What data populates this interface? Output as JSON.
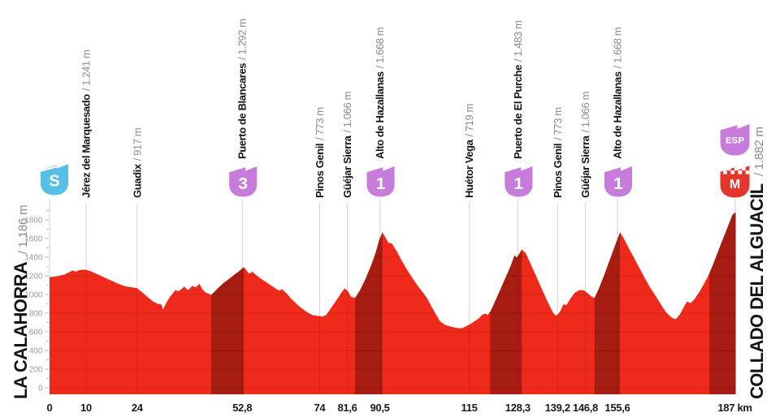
{
  "chart_data": {
    "type": "area",
    "title": "",
    "x_unit": "km",
    "xlim_km": [
      0,
      188
    ],
    "ylim_m": [
      0,
      1900
    ],
    "grid": "vertical-at-waypoints, horizontal-200m-inside-fill",
    "y_ticks_m": [
      0,
      200,
      400,
      600,
      800,
      1000,
      1200,
      1400,
      1600,
      1800
    ],
    "x_ticks": [
      {
        "km": 0,
        "label": "0"
      },
      {
        "km": 10,
        "label": "10"
      },
      {
        "km": 24,
        "label": "24"
      },
      {
        "km": 52.8,
        "label": "52,8"
      },
      {
        "km": 74,
        "label": "74"
      },
      {
        "km": 81.6,
        "label": "81,6"
      },
      {
        "km": 90.5,
        "label": "90,5"
      },
      {
        "km": 115,
        "label": "115"
      },
      {
        "km": 128.3,
        "label": "128,3"
      },
      {
        "km": 139.2,
        "label": "139,2"
      },
      {
        "km": 146.8,
        "label": "146,8"
      },
      {
        "km": 155.6,
        "label": "155,6"
      },
      {
        "km": 187,
        "label": "187 km"
      }
    ],
    "start_label": {
      "name": "LA CALAHORRA",
      "elevation": "/ 1.186 m"
    },
    "finish_label": {
      "name": "COLLADO DEL ALGUACIL",
      "elevation": "/ 1.882 m"
    },
    "waypoints": [
      {
        "km": 0,
        "icon": "start",
        "icon_label": "S"
      },
      {
        "km": 10,
        "name": "Jérez del Marquesado",
        "elevation": "/ 1.241 m"
      },
      {
        "km": 24,
        "name": "Guadix",
        "elevation": "/ 917 m"
      },
      {
        "km": 52.8,
        "name": "Puerto de Blancares",
        "elevation": "/ 1.292 m",
        "icon": "category",
        "icon_label": "3"
      },
      {
        "km": 74,
        "name": "Pinos Genil",
        "elevation": "/ 773 m"
      },
      {
        "km": 81.6,
        "name": "Güéjar Sierra",
        "elevation": "/ 1.066 m"
      },
      {
        "km": 90.5,
        "name": "Alto de Hazallanas",
        "elevation": "/ 1.668 m",
        "icon": "category",
        "icon_label": "1"
      },
      {
        "km": 115,
        "name": "Huétor Vega",
        "elevation": "/ 719 m"
      },
      {
        "km": 128.3,
        "name": "Puerto de El Purche",
        "elevation": "/ 1.483 m",
        "icon": "category",
        "icon_label": "1"
      },
      {
        "km": 139.2,
        "name": "Pinos Genil",
        "elevation": "/ 773 m"
      },
      {
        "km": 146.8,
        "name": "Güéjar Sierra",
        "elevation": "/ 1.066 m"
      },
      {
        "km": 155.6,
        "name": "Alto de Hazallanas",
        "elevation": "/ 1.668 m",
        "icon": "category",
        "icon_label": "1"
      },
      {
        "km": 187,
        "icon": "finish",
        "icon_label": "M",
        "flag_label": "ESP"
      }
    ],
    "climb_segments_km": [
      [
        44.3,
        53.2
      ],
      [
        83.7,
        91.2
      ],
      [
        120.7,
        129.4
      ],
      [
        149.3,
        156.3
      ],
      [
        180.8,
        188.5
      ]
    ],
    "profile_km_m": [
      [
        0,
        1186
      ],
      [
        2,
        1196
      ],
      [
        4,
        1212
      ],
      [
        5.5,
        1242
      ],
      [
        6.3,
        1258
      ],
      [
        7.2,
        1244
      ],
      [
        8.2,
        1262
      ],
      [
        9.5,
        1266
      ],
      [
        10.5,
        1258
      ],
      [
        11.5,
        1246
      ],
      [
        13,
        1218
      ],
      [
        15,
        1182
      ],
      [
        17,
        1148
      ],
      [
        19,
        1112
      ],
      [
        21,
        1085
      ],
      [
        23,
        1074
      ],
      [
        24,
        1068
      ],
      [
        25.5,
        1020
      ],
      [
        27,
        968
      ],
      [
        28.5,
        922
      ],
      [
        29.8,
        898
      ],
      [
        30.6,
        893
      ],
      [
        31.1,
        838
      ],
      [
        31.9,
        905
      ],
      [
        33,
        975
      ],
      [
        33.8,
        1012
      ],
      [
        34.5,
        1050
      ],
      [
        35.2,
        1032
      ],
      [
        36.2,
        1060
      ],
      [
        36.9,
        1086
      ],
      [
        37.9,
        1046
      ],
      [
        39.1,
        1092
      ],
      [
        40,
        1076
      ],
      [
        41.1,
        1116
      ],
      [
        41.8,
        1060
      ],
      [
        42.8,
        1020
      ],
      [
        44.3,
        996
      ],
      [
        46,
        1062
      ],
      [
        47.5,
        1118
      ],
      [
        49,
        1162
      ],
      [
        50.5,
        1208
      ],
      [
        52,
        1252
      ],
      [
        53.2,
        1292
      ],
      [
        53.9,
        1262
      ],
      [
        54.6,
        1222
      ],
      [
        55.6,
        1244
      ],
      [
        56.6,
        1208
      ],
      [
        58,
        1168
      ],
      [
        59.5,
        1128
      ],
      [
        61,
        1088
      ],
      [
        62.4,
        1052
      ],
      [
        63.1,
        1042
      ],
      [
        63.6,
        1058
      ],
      [
        64.8,
        1018
      ],
      [
        66,
        962
      ],
      [
        67.5,
        905
      ],
      [
        69,
        855
      ],
      [
        70.5,
        812
      ],
      [
        72,
        780
      ],
      [
        73.5,
        770
      ],
      [
        74.8,
        763
      ],
      [
        75.8,
        780
      ],
      [
        77,
        848
      ],
      [
        78.5,
        932
      ],
      [
        80,
        1022
      ],
      [
        80.8,
        1066
      ],
      [
        81.8,
        1032
      ],
      [
        82.6,
        975
      ],
      [
        83.7,
        964
      ],
      [
        85,
        1042
      ],
      [
        86.5,
        1162
      ],
      [
        88,
        1302
      ],
      [
        89.3,
        1442
      ],
      [
        90.3,
        1582
      ],
      [
        91.2,
        1668
      ],
      [
        92,
        1612
      ],
      [
        92.8,
        1556
      ],
      [
        93.8,
        1548
      ],
      [
        95,
        1472
      ],
      [
        96.5,
        1362
      ],
      [
        98,
        1262
      ],
      [
        99.5,
        1172
      ],
      [
        101,
        1086
      ],
      [
        102.5,
        1012
      ],
      [
        103.5,
        956
      ],
      [
        104.5,
        882
      ],
      [
        106,
        778
      ],
      [
        107,
        712
      ],
      [
        108.5,
        670
      ],
      [
        110,
        656
      ],
      [
        111.5,
        642
      ],
      [
        113,
        638
      ],
      [
        114.5,
        666
      ],
      [
        116,
        702
      ],
      [
        117.5,
        742
      ],
      [
        118.6,
        784
      ],
      [
        119.4,
        794
      ],
      [
        120.1,
        782
      ],
      [
        121,
        834
      ],
      [
        122.3,
        948
      ],
      [
        123.6,
        1062
      ],
      [
        125,
        1188
      ],
      [
        126.3,
        1302
      ],
      [
        127.4,
        1422
      ],
      [
        128,
        1394
      ],
      [
        129.4,
        1483
      ],
      [
        130.5,
        1442
      ],
      [
        132,
        1312
      ],
      [
        133.5,
        1182
      ],
      [
        135,
        1048
      ],
      [
        136.5,
        918
      ],
      [
        138,
        802
      ],
      [
        138.8,
        772
      ],
      [
        139.8,
        812
      ],
      [
        140.8,
        896
      ],
      [
        141.6,
        886
      ],
      [
        142.8,
        962
      ],
      [
        144,
        1022
      ],
      [
        145.2,
        1048
      ],
      [
        146.4,
        1044
      ],
      [
        147.4,
        1016
      ],
      [
        148.4,
        980
      ],
      [
        149.3,
        964
      ],
      [
        150.5,
        1062
      ],
      [
        152,
        1212
      ],
      [
        153.5,
        1372
      ],
      [
        155,
        1532
      ],
      [
        156.3,
        1668
      ],
      [
        157.3,
        1602
      ],
      [
        158.5,
        1512
      ],
      [
        160,
        1402
      ],
      [
        161.5,
        1292
      ],
      [
        163,
        1182
      ],
      [
        164.5,
        1078
      ],
      [
        166,
        988
      ],
      [
        167.5,
        892
      ],
      [
        169,
        806
      ],
      [
        170.5,
        750
      ],
      [
        171.6,
        735
      ],
      [
        172.8,
        792
      ],
      [
        174,
        882
      ],
      [
        174.7,
        926
      ],
      [
        175.6,
        906
      ],
      [
        176.6,
        946
      ],
      [
        177.8,
        1012
      ],
      [
        179,
        1092
      ],
      [
        180.3,
        1186
      ],
      [
        181.6,
        1302
      ],
      [
        183,
        1444
      ],
      [
        184.4,
        1584
      ],
      [
        185.8,
        1724
      ],
      [
        187.1,
        1854
      ],
      [
        188,
        1882
      ]
    ],
    "colors": {
      "profile_red": "#EF2A1B",
      "climb_shade": "rgba(0,0,0,0.30)",
      "start_cyan": "#56BFE5",
      "category_purple": "#C77BDB",
      "finish_red": "#E5362B",
      "gridline": "#d2d2d2",
      "axis_text": "#9a9a9a",
      "label_text": "#141414",
      "elevation_text": "#8a8a8a",
      "x_axis_text": "#1a1a1a"
    }
  }
}
